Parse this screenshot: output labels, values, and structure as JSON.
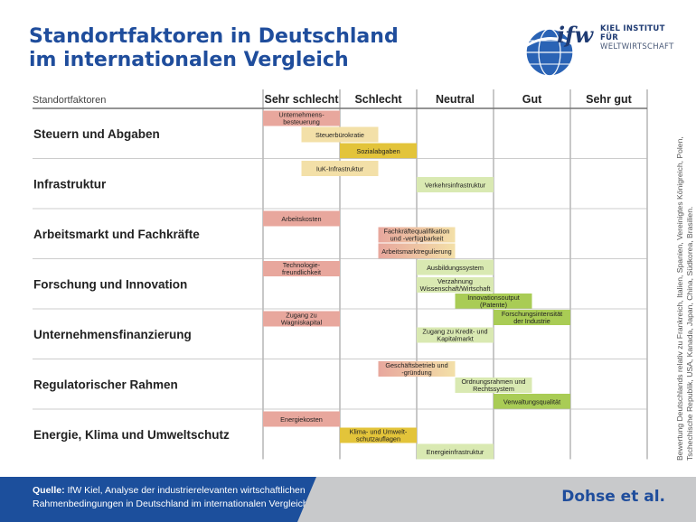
{
  "title_lines": [
    "Standortfaktoren in Deutschland",
    "im internationalen Vergleich"
  ],
  "logo": {
    "mark": "ifw",
    "line1": "KIEL INSTITUT FÜR",
    "line2": "WELTWIRTSCHAFT"
  },
  "chart_data": {
    "type": "table",
    "header_left": "Standortfaktoren",
    "scale": [
      "Sehr schlecht",
      "Schlecht",
      "Neutral",
      "Gut",
      "Sehr gut"
    ],
    "colors": {
      "1-2": "#e8a79d",
      "2-2.5": "#f3e0a8",
      "2.5-3": "#e3c43a",
      "3-3.5": "#d9e9b2",
      "3.5-4": "#a9cc55"
    },
    "categories": [
      {
        "name": "Steuern und Abgaben",
        "items": [
          {
            "label": [
              "Unternehmens-",
              "besteuerung"
            ],
            "start": 1,
            "end": 2,
            "color": "#e8a79d"
          },
          {
            "label": [
              "Steuerbürokratie"
            ],
            "start": 1.5,
            "end": 2.5,
            "color": "#f3e0a8"
          },
          {
            "label": [
              "Sozialabgaben"
            ],
            "start": 2,
            "end": 3,
            "color": "#e3c43a"
          }
        ]
      },
      {
        "name": "Infrastruktur",
        "items": [
          {
            "label": [
              "IuK-Infrastruktur"
            ],
            "start": 1.5,
            "end": 2.5,
            "color": "#f3e0a8"
          },
          {
            "label": [
              "Verkehrsinfrastruktur"
            ],
            "start": 3,
            "end": 4,
            "color": "#d9e9b2"
          }
        ]
      },
      {
        "name": "Arbeitsmarkt und Fachkräfte",
        "items": [
          {
            "label": [
              "Arbeitskosten"
            ],
            "start": 1,
            "end": 2,
            "color": "#e8a79d"
          },
          {
            "label": [
              "Fachkräftequalifikation",
              "und -verfügbarkeit"
            ],
            "start": 2.5,
            "end": 3.5,
            "color": "#e8a79d",
            "color_end": "#f3e0a8"
          },
          {
            "label": [
              "Arbeitsmarktregulierung"
            ],
            "start": 2.5,
            "end": 3.5,
            "color": "#e8a79d",
            "color_end": "#f3e0a8"
          },
          {
            "label": [
              "Ausbildungssystem"
            ],
            "start": 3,
            "end": 4,
            "color": "#d9e9b2"
          }
        ]
      },
      {
        "name": "Forschung und Innovation",
        "items": [
          {
            "label": [
              "Technologie-",
              "freundlichkeit"
            ],
            "start": 1,
            "end": 2,
            "color": "#e8a79d"
          },
          {
            "label": [
              "Verzahnung",
              "Wissenschaft/Wirtschaft"
            ],
            "start": 3,
            "end": 4,
            "color": "#d9e9b2"
          },
          {
            "label": [
              "Innovationsoutput",
              "(Patente)"
            ],
            "start": 3.5,
            "end": 4.5,
            "color": "#a9cc55"
          },
          {
            "label": [
              "Forschungsintensität",
              "der Industrie"
            ],
            "start": 4,
            "end": 5,
            "color": "#a9cc55"
          }
        ]
      },
      {
        "name": "Unternehmensfinanzierung",
        "items": [
          {
            "label": [
              "Zugang zu",
              "Wagniskapital"
            ],
            "start": 1,
            "end": 2,
            "color": "#e8a79d"
          },
          {
            "label": [
              "Zugang zu Kredit- und",
              "Kapitalmarkt"
            ],
            "start": 3,
            "end": 4,
            "color": "#d9e9b2"
          }
        ]
      },
      {
        "name": "Regulatorischer Rahmen",
        "items": [
          {
            "label": [
              "Geschäftsbetrieb und",
              "-gründung"
            ],
            "start": 2.5,
            "end": 3.5,
            "color": "#e8a79d",
            "color_end": "#f3e0a8"
          },
          {
            "label": [
              "Ordnungsrahmen und",
              "Rechtssystem"
            ],
            "start": 3.5,
            "end": 4.5,
            "color": "#d9e9b2"
          },
          {
            "label": [
              "Verwaltungsqualität"
            ],
            "start": 4,
            "end": 5,
            "color": "#a9cc55"
          }
        ]
      },
      {
        "name": "Energie, Klima und Umweltschutz",
        "items": [
          {
            "label": [
              "Energiekosten"
            ],
            "start": 1,
            "end": 2,
            "color": "#e8a79d"
          },
          {
            "label": [
              "Klima- und Umwelt-",
              "schutzauflagen"
            ],
            "start": 2,
            "end": 3,
            "color": "#e3c43a"
          },
          {
            "label": [
              "Energieinfrastruktur"
            ],
            "start": 3,
            "end": 4,
            "color": "#d9e9b2"
          }
        ]
      }
    ]
  },
  "side_note": "Bewertung Deutschlands relativ zu Frankreich, Italien, Spanien, Vereinigtes Königreich, Polen, Tschechische Republik, USA, Kanada, Japan, China, Südkorea, Brasilien.",
  "footer": {
    "source_label": "Quelle:",
    "source_line1": "IfW Kiel, Analyse der industrierelevanten wirtschaftlichen",
    "source_line2": "Rahmenbedingungen in Deutschland im internationalen Vergleich",
    "authors": "Dohse et al."
  }
}
